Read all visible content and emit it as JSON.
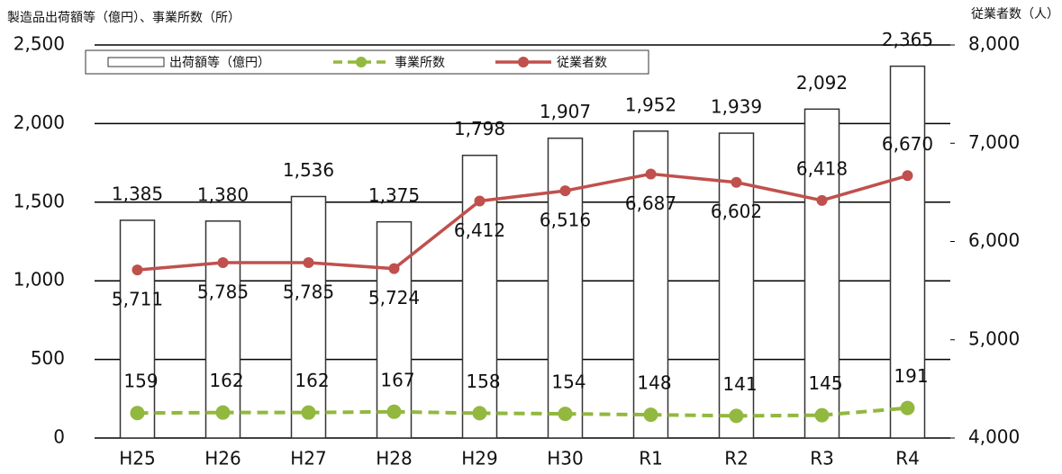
{
  "chart_data": {
    "type": "bar",
    "ylabel": "製造品出荷額等（億円）、事業所数（所）",
    "y2label": "従業者数（人）",
    "categories": [
      "H25",
      "H26",
      "H27",
      "H28",
      "H29",
      "H30",
      "R1",
      "R2",
      "R3",
      "R4"
    ],
    "series": [
      {
        "name": "出荷額等（億円）",
        "type": "bar",
        "color": "#ffffff",
        "values": [
          1385,
          1380,
          1536,
          1375,
          1798,
          1907,
          1952,
          1939,
          2092,
          2365
        ],
        "value_labels": [
          "1,385",
          "1,380",
          "1,536",
          "1,375",
          "1,798",
          "1,907",
          "1,952",
          "1,939",
          "2,092",
          "2,365"
        ]
      },
      {
        "name": "事業所数",
        "type": "line",
        "color": "#92b83f",
        "dashed": true,
        "values": [
          159,
          162,
          162,
          167,
          158,
          154,
          148,
          141,
          145,
          191
        ]
      },
      {
        "name": "従業者数",
        "type": "line",
        "color": "#c0504d",
        "axis": "y2",
        "values": [
          5711,
          5785,
          5785,
          5724,
          6412,
          6516,
          6687,
          6602,
          6418,
          6670
        ],
        "value_labels": [
          "5,711",
          "5,785",
          "5,785",
          "5,724",
          "6,412",
          "6,516",
          "6,687",
          "6,602",
          "6,418",
          "6,670"
        ]
      }
    ],
    "ylim": [
      0,
      2500
    ],
    "yticks": [
      0,
      500,
      {
        "value": 1000,
        "label": "1,000"
      },
      {
        "value": 1500,
        "label": "1,500"
      },
      {
        "value": 2000,
        "label": "2,000"
      },
      {
        "value": 2500,
        "label": "2,500"
      }
    ],
    "y2lim": [
      4000,
      8000
    ],
    "y2ticks": [
      {
        "value": 4000,
        "label": "4,000"
      },
      {
        "value": 5000,
        "label": "5,000"
      },
      {
        "value": 6000,
        "label": "6,000"
      },
      {
        "value": 7000,
        "label": "7,000"
      },
      {
        "value": 8000,
        "label": "8,000"
      }
    ],
    "grid": true
  }
}
